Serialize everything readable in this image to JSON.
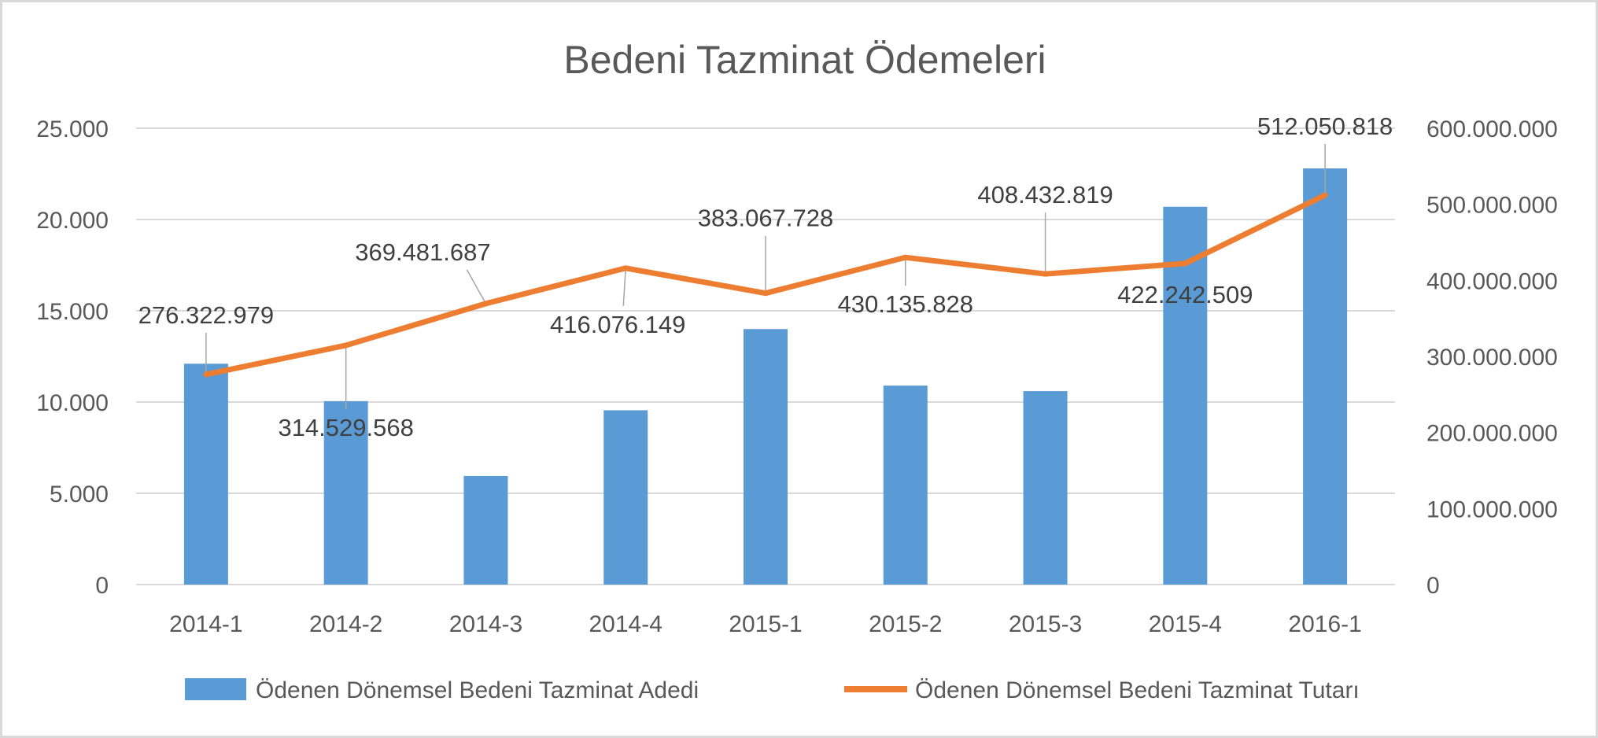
{
  "chart_data": {
    "type": "bar+line",
    "title": "Bedeni Tazminat Ödemeleri",
    "categories": [
      "2014-1",
      "2014-2",
      "2014-3",
      "2014-4",
      "2015-1",
      "2015-2",
      "2015-3",
      "2015-4",
      "2016-1"
    ],
    "series": [
      {
        "name": "Ödenen Dönemsel Bedeni Tazminat Adedi",
        "type": "bar",
        "axis": "left",
        "color": "#5b9bd5",
        "values": [
          12100,
          10050,
          5950,
          9550,
          14000,
          10900,
          10600,
          20700,
          22800
        ]
      },
      {
        "name": "Ödenen Dönemsel Bedeni Tazminat Tutarı",
        "type": "line",
        "axis": "right",
        "color": "#ed7d31",
        "values": [
          276322979,
          314529568,
          369481687,
          416076149,
          383067728,
          430135828,
          408432819,
          422242509,
          512050818
        ],
        "labels": [
          "276.322.979",
          "314.529.568",
          "369.481.687",
          "416.076.149",
          "383.067.728",
          "430.135.828",
          "408.432.819",
          "422.242.509",
          "512.050.818"
        ]
      }
    ],
    "y_left": {
      "min": 0,
      "max": 25000,
      "ticks": [
        "0",
        "5.000",
        "10.000",
        "15.000",
        "20.000",
        "25.000"
      ]
    },
    "y_right": {
      "min": 0,
      "max": 600000000,
      "ticks": [
        "0",
        "100.000.000",
        "200.000.000",
        "300.000.000",
        "400.000.000",
        "500.000.000",
        "600.000.000"
      ]
    },
    "grid": true,
    "legend_position": "bottom"
  }
}
